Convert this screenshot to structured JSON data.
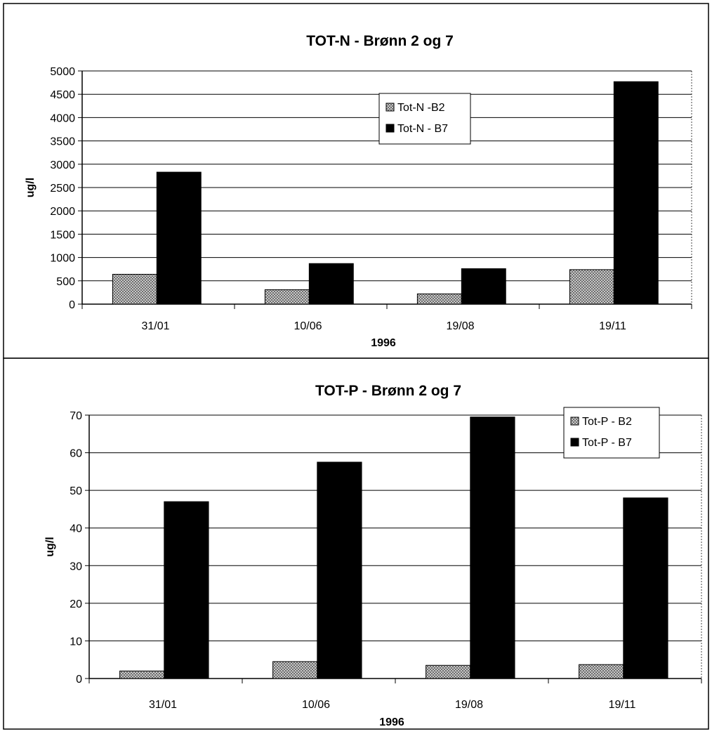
{
  "chart_data": [
    {
      "type": "bar",
      "title": "TOT-N - Brønn 2 og 7",
      "xlabel": "1996",
      "ylabel": "ug/l",
      "categories": [
        "31/01",
        "10/06",
        "19/08",
        "19/11"
      ],
      "series": [
        {
          "name": "Tot-N -B2",
          "values": [
            640,
            310,
            220,
            740
          ],
          "color": "#9a9a9a",
          "pattern": "hatched"
        },
        {
          "name": "Tot-N - B7",
          "values": [
            2830,
            870,
            760,
            4770
          ],
          "color": "#000000",
          "pattern": "solid"
        }
      ],
      "ylim": [
        0,
        5000
      ],
      "yticks": [
        0,
        500,
        1000,
        1500,
        2000,
        2500,
        3000,
        3500,
        4000,
        4500,
        5000
      ],
      "grid": true,
      "legend_position": "top-center"
    },
    {
      "type": "bar",
      "title": "TOT-P - Brønn 2 og 7",
      "xlabel": "1996",
      "ylabel": "ug/l",
      "categories": [
        "31/01",
        "10/06",
        "19/08",
        "19/11"
      ],
      "series": [
        {
          "name": "Tot-P - B2",
          "values": [
            2,
            4.5,
            3.5,
            3.7
          ],
          "color": "#9a9a9a",
          "pattern": "hatched"
        },
        {
          "name": "Tot-P - B7",
          "values": [
            47,
            57.5,
            69.5,
            48
          ],
          "color": "#000000",
          "pattern": "solid"
        }
      ],
      "ylim": [
        0,
        70
      ],
      "yticks": [
        0,
        10,
        20,
        30,
        40,
        50,
        60,
        70
      ],
      "grid": true,
      "legend_position": "top-right"
    }
  ]
}
